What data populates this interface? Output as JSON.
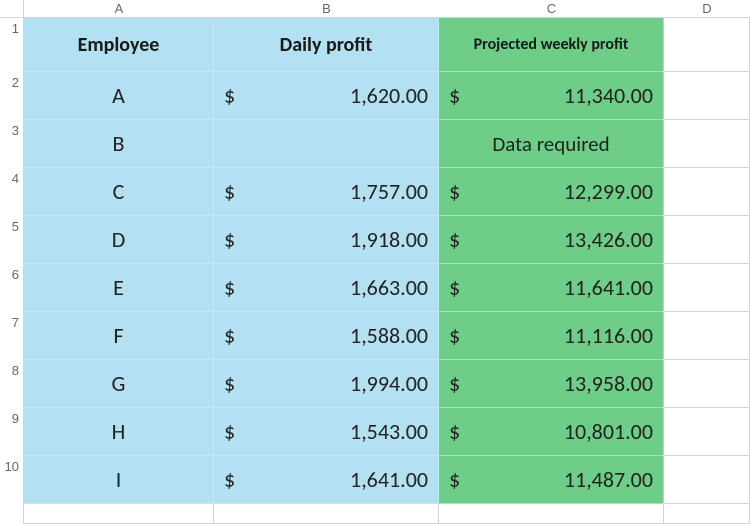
{
  "columns": [
    "A",
    "B",
    "C",
    "D"
  ],
  "row_numbers": [
    "1",
    "2",
    "3",
    "4",
    "5",
    "6",
    "7",
    "8",
    "9",
    "10"
  ],
  "headers": {
    "employee": "Employee",
    "daily_profit": "Daily profit",
    "projected_weekly_profit": "Projected weekly profit"
  },
  "currency_symbol": "$",
  "colors": {
    "blue_bg": "#b3e0f2",
    "green_bg": "#6ece88",
    "sheet_border": "#d4d4d4"
  },
  "rows": [
    {
      "employee": "A",
      "daily": "1,620.00",
      "weekly": "11,340.00",
      "has_data": true
    },
    {
      "employee": "B",
      "daily": "",
      "weekly": "Data required",
      "has_data": false
    },
    {
      "employee": "C",
      "daily": "1,757.00",
      "weekly": "12,299.00",
      "has_data": true
    },
    {
      "employee": "D",
      "daily": "1,918.00",
      "weekly": "13,426.00",
      "has_data": true
    },
    {
      "employee": "E",
      "daily": "1,663.00",
      "weekly": "11,641.00",
      "has_data": true
    },
    {
      "employee": "F",
      "daily": "1,588.00",
      "weekly": "11,116.00",
      "has_data": true
    },
    {
      "employee": "G",
      "daily": "1,994.00",
      "weekly": "13,958.00",
      "has_data": true
    },
    {
      "employee": "H",
      "daily": "1,543.00",
      "weekly": "10,801.00",
      "has_data": true
    },
    {
      "employee": "I",
      "daily": "1,641.00",
      "weekly": "11,487.00",
      "has_data": true
    }
  ]
}
